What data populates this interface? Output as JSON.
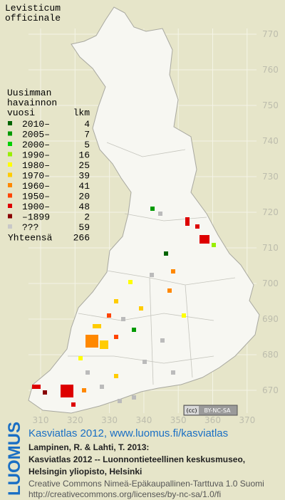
{
  "title_lines": [
    "Levisticum",
    "officinale"
  ],
  "legend": {
    "heading_lines": [
      "Uusimman",
      "havainnon",
      "vuosi"
    ],
    "count_heading": "lkm",
    "rows": [
      {
        "label": "2010–",
        "count": 4,
        "color": "#006400"
      },
      {
        "label": "2005–",
        "count": 7,
        "color": "#009a00"
      },
      {
        "label": "2000–",
        "count": 5,
        "color": "#00d000"
      },
      {
        "label": "1990–",
        "count": 16,
        "color": "#99ee00"
      },
      {
        "label": "1980–",
        "count": 25,
        "color": "#ffff00"
      },
      {
        "label": "1970–",
        "count": 39,
        "color": "#ffcc00"
      },
      {
        "label": "1960–",
        "count": 41,
        "color": "#ff8800"
      },
      {
        "label": "1950–",
        "count": 20,
        "color": "#ff4400"
      },
      {
        "label": "1900–",
        "count": 48,
        "color": "#dd0000"
      },
      {
        "label": "–1899",
        "count": 2,
        "color": "#880000"
      },
      {
        "label": "???",
        "count": 59,
        "color": "#c8c8c8"
      }
    ],
    "total_label": "Yhteensä",
    "total": 266
  },
  "grid": {
    "north": [
      770,
      760,
      750,
      740,
      730,
      720,
      710,
      700,
      690,
      680,
      670
    ],
    "east": [
      310,
      320,
      330,
      340,
      350,
      360,
      370
    ]
  },
  "license_badge": {
    "icon": "(cc)",
    "text": "BY-NC-SA"
  },
  "footer": {
    "link": "Kasviatlas 2012, www.luomus.fi/kasviatlas",
    "citation_lines": [
      "Lampinen, R. & Lahti, T. 2013:",
      "Kasviatlas 2012 -- Luonnontieteellinen keskusmuseo,",
      "Helsingin yliopisto, Helsinki"
    ],
    "license_lines": [
      "Creative Commons Nimeä-Epäkaupallinen-Tarttuva 1.0 Suomi",
      "http://creativecommons.org/licenses/by-nc-sa/1.0/fi"
    ]
  },
  "logo": "LUOMUS"
}
